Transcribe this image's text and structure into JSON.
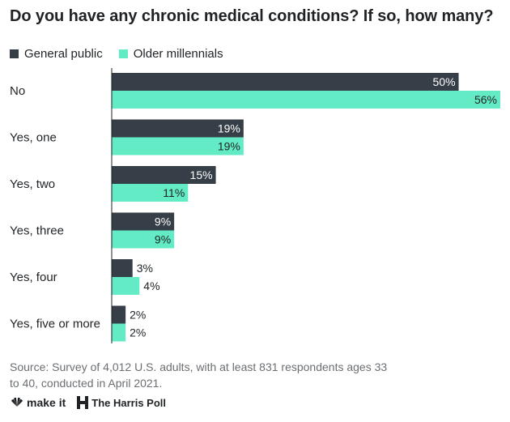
{
  "title": "Do you have any chronic medical conditions? If so, how many?",
  "legend": [
    {
      "name": "General public",
      "color": "#363e47"
    },
    {
      "name": "Older millennials",
      "color": "#63ebc5"
    }
  ],
  "chart_data": {
    "type": "bar",
    "orientation": "horizontal",
    "categories": [
      "No",
      "Yes, one",
      "Yes, two",
      "Yes, three",
      "Yes, four",
      "Yes, five or more"
    ],
    "series": [
      {
        "name": "General public",
        "values": [
          50,
          19,
          15,
          9,
          3,
          2
        ],
        "color": "#363e47"
      },
      {
        "name": "Older millennials",
        "values": [
          56,
          19,
          11,
          9,
          4,
          2
        ],
        "color": "#63ebc5"
      }
    ],
    "value_suffix": "%",
    "xlim": [
      0,
      56
    ],
    "grid": false
  },
  "source": "Source: Survey of 4,012 U.S. adults, with at least 831 respondents ages 33 to 40, conducted in April 2021.",
  "footer": {
    "brand1": "make it",
    "brand2": "The Harris Poll"
  }
}
